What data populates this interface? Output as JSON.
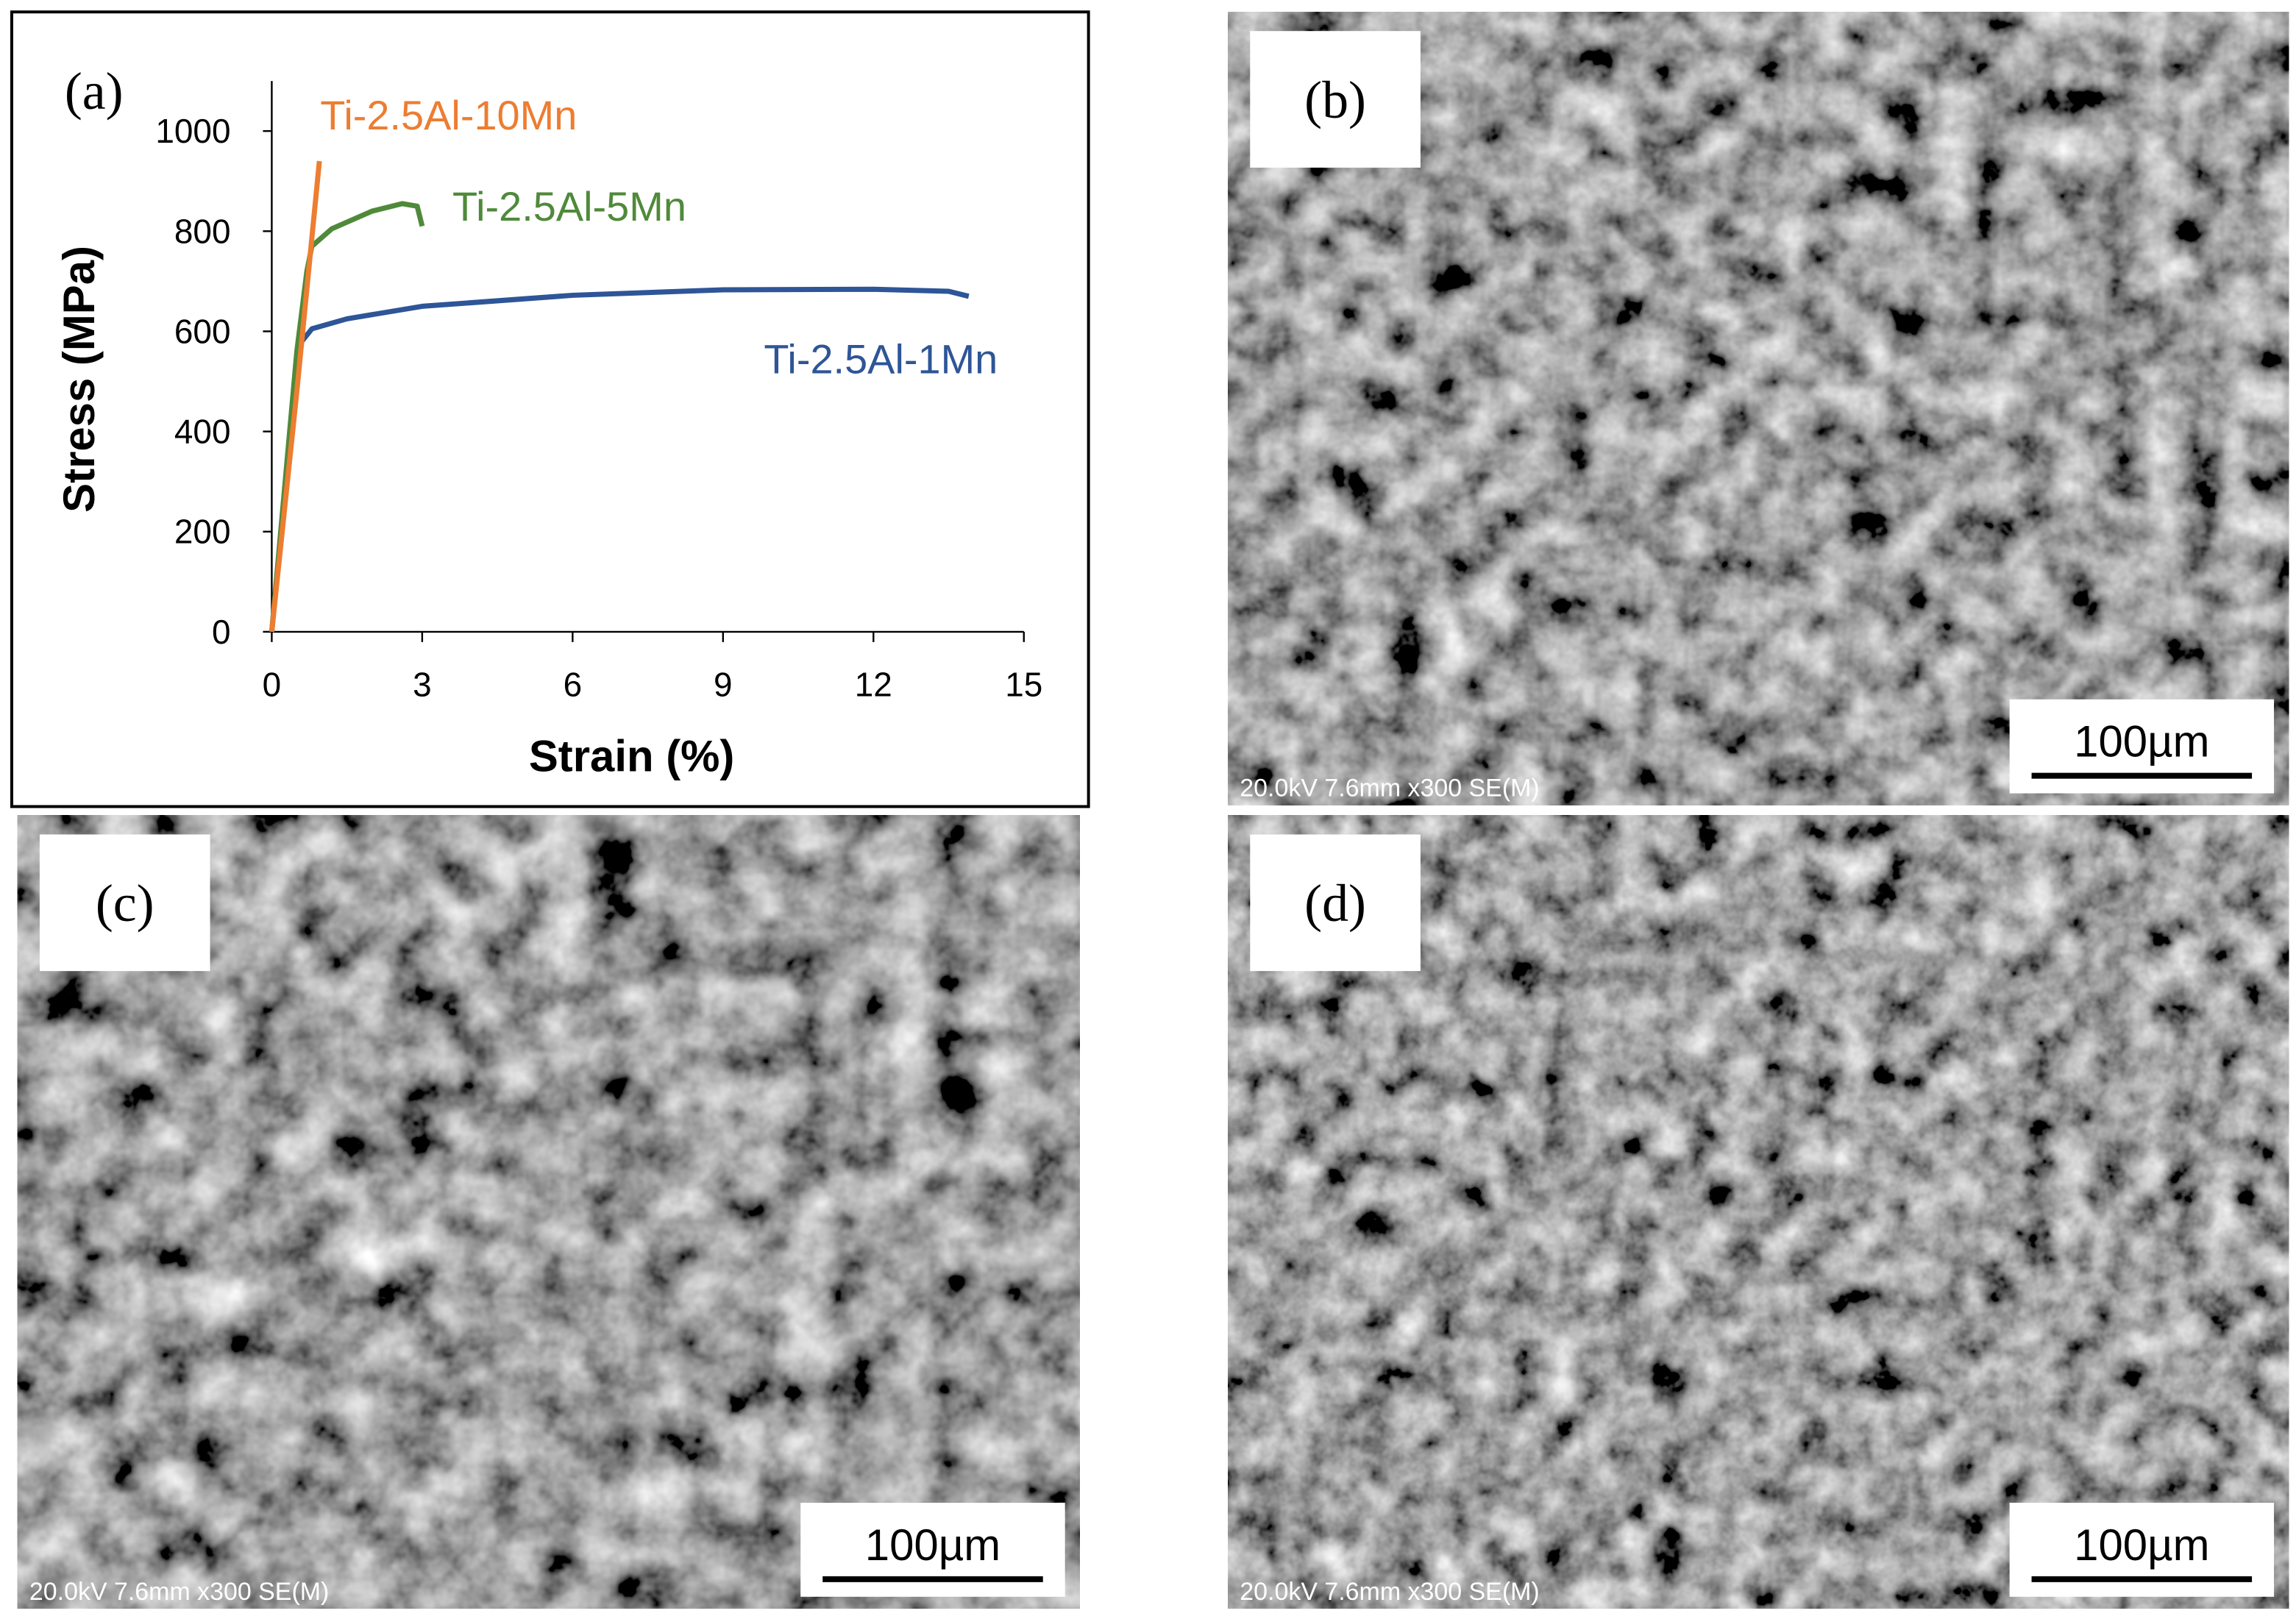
{
  "chart_data": {
    "type": "line",
    "panel_label": "(a)",
    "xlabel": "Strain (%)",
    "ylabel": "Stress (MPa)",
    "xlim": [
      0,
      15
    ],
    "ylim": [
      0,
      1100
    ],
    "xticks": [
      0,
      3,
      6,
      9,
      12,
      15
    ],
    "yticks": [
      0,
      200,
      400,
      600,
      800,
      1000
    ],
    "series": [
      {
        "name": "Ti-2.5Al-1Mn",
        "color": "#2e5597",
        "x": [
          0,
          0.5,
          0.6,
          0.8,
          1.5,
          3,
          6,
          9,
          12,
          13.5,
          13.9
        ],
        "values": [
          0,
          530,
          580,
          605,
          625,
          650,
          672,
          683,
          684,
          680,
          670
        ]
      },
      {
        "name": "Ti-2.5Al-5Mn",
        "color": "#4f8a3a",
        "x": [
          0,
          0.5,
          0.7,
          0.8,
          1.2,
          2,
          2.6,
          2.9,
          3.0
        ],
        "values": [
          0,
          560,
          720,
          770,
          805,
          840,
          855,
          850,
          810
        ]
      },
      {
        "name": "Ti-2.5Al-10Mn",
        "color": "#ed7d31",
        "x": [
          0,
          0.5,
          0.95
        ],
        "values": [
          0,
          480,
          940
        ]
      }
    ]
  },
  "panels": [
    {
      "label": "(b)",
      "scale_bar": "100µm",
      "info": "20.0kV 7.6mm x300 SE(M)"
    },
    {
      "label": "(c)",
      "scale_bar": "100µm",
      "info": "20.0kV 7.6mm x300 SE(M)"
    },
    {
      "label": "(d)",
      "scale_bar": "100µm",
      "info": "20.0kV 7.6mm x300 SE(M)"
    }
  ]
}
